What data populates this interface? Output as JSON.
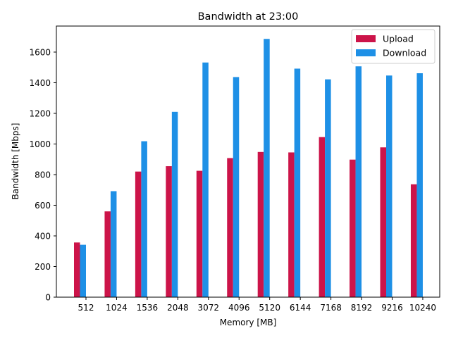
{
  "chart_data": {
    "type": "bar",
    "title": "Bandwidth at 23:00",
    "xlabel": "Memory [MB]",
    "ylabel": "Bandwidth [Mbps]",
    "categories": [
      "512",
      "1024",
      "1536",
      "2048",
      "3072",
      "4096",
      "5120",
      "6144",
      "7168",
      "8192",
      "9216",
      "10240"
    ],
    "series": [
      {
        "name": "Upload",
        "color": "#cc1449",
        "values": [
          357,
          560,
          820,
          855,
          825,
          908,
          948,
          945,
          1045,
          898,
          978,
          737
        ]
      },
      {
        "name": "Download",
        "color": "#1e90e6",
        "values": [
          342,
          692,
          1018,
          1210,
          1532,
          1437,
          1686,
          1492,
          1422,
          1507,
          1447,
          1462
        ]
      }
    ],
    "ylim": [
      0,
      1770
    ],
    "yticks": [
      0,
      200,
      400,
      600,
      800,
      1000,
      1200,
      1400,
      1600
    ],
    "legend_position": "top-right",
    "grid": false
  }
}
